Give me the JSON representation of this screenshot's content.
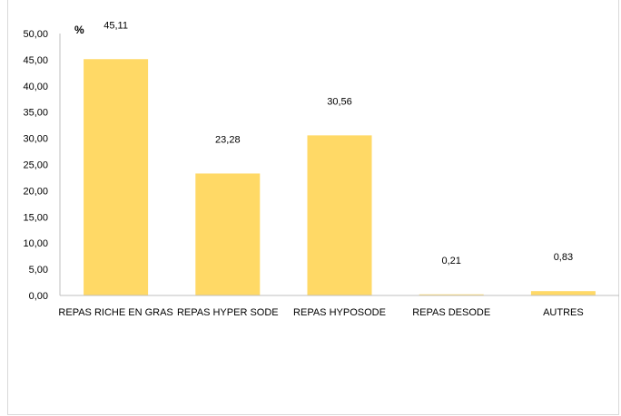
{
  "chart_data": {
    "type": "bar",
    "title": "",
    "xlabel": "",
    "ylabel": "%",
    "categories": [
      "REPAS RICHE EN GRAS",
      "REPAS HYPER SODE",
      "REPAS HYPOSODE",
      "REPAS DESODE",
      "AUTRES"
    ],
    "values": [
      45.11,
      23.28,
      30.56,
      0.21,
      0.83
    ],
    "value_labels": [
      "45,11",
      "23,28",
      "30,56",
      "0,21",
      "0,83"
    ],
    "ylim": [
      0,
      50
    ],
    "yticks": [
      "0,00",
      "5,00",
      "10,00",
      "15,00",
      "20,00",
      "25,00",
      "30,00",
      "35,00",
      "40,00",
      "45,00",
      "50,00"
    ],
    "grid": false,
    "legend": "none",
    "bar_color": "#ffd966"
  }
}
